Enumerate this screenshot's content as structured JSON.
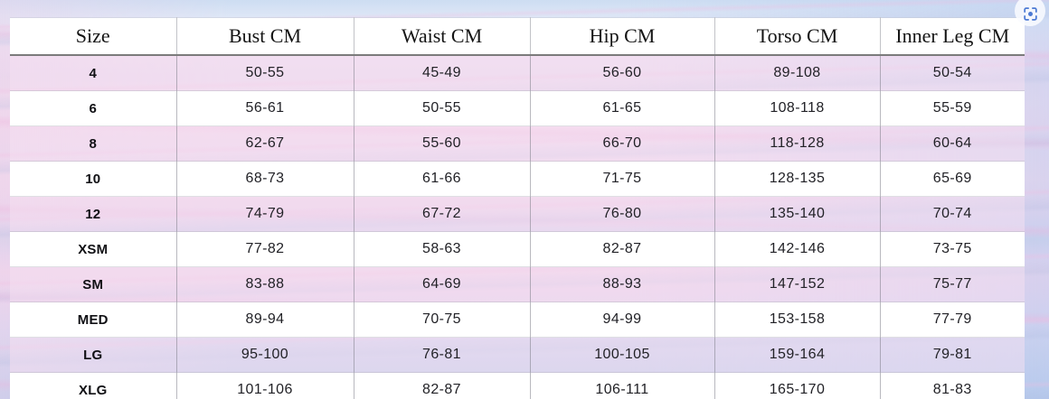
{
  "table": {
    "headers": [
      "Size",
      "Bust CM",
      "Waist CM",
      "Hip CM",
      "Torso CM",
      "Inner Leg CM"
    ],
    "rows": [
      {
        "size": "4",
        "values": [
          "50-55",
          "45-49",
          "56-60",
          "89-108",
          "50-54"
        ]
      },
      {
        "size": "6",
        "values": [
          "56-61",
          "50-55",
          "61-65",
          "108-118",
          "55-59"
        ]
      },
      {
        "size": "8",
        "values": [
          "62-67",
          "55-60",
          "66-70",
          "118-128",
          "60-64"
        ]
      },
      {
        "size": "10",
        "values": [
          "68-73",
          "61-66",
          "71-75",
          "128-135",
          "65-69"
        ]
      },
      {
        "size": "12",
        "values": [
          "74-79",
          "67-72",
          "76-80",
          "135-140",
          "70-74"
        ]
      },
      {
        "size": "XSM",
        "values": [
          "77-82",
          "58-63",
          "82-87",
          "142-146",
          "73-75"
        ]
      },
      {
        "size": "SM",
        "values": [
          "83-88",
          "64-69",
          "88-93",
          "147-152",
          "75-77"
        ]
      },
      {
        "size": "MED",
        "values": [
          "89-94",
          "70-75",
          "94-99",
          "153-158",
          "77-79"
        ]
      },
      {
        "size": "LG",
        "values": [
          "95-100",
          "76-81",
          "100-105",
          "159-164",
          "79-81"
        ]
      },
      {
        "size": "XLG",
        "values": [
          "101-106",
          "82-87",
          "106-111",
          "165-170",
          "81-83"
        ]
      }
    ]
  },
  "icons": {
    "capture": "lens-capture-icon"
  },
  "colors": {
    "icon-blue": "#4b79d3",
    "row-tint": "rgba(246,225,242,0.52)",
    "header-border": "#7b7b7b"
  }
}
